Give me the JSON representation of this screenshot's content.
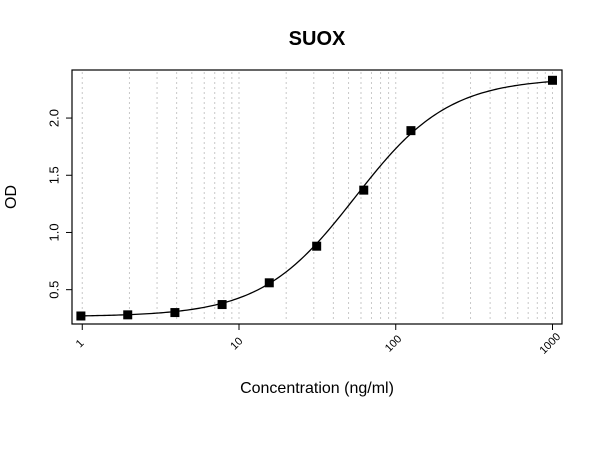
{
  "chart_data": {
    "type": "scatter",
    "title": "SUOX",
    "xlabel": "Concentration (ng/ml)",
    "ylabel": "OD",
    "x_scale": "log",
    "xlim": [
      0.86,
      1150
    ],
    "ylim": [
      0.2,
      2.42
    ],
    "x_ticks": [
      1,
      10,
      100,
      1000
    ],
    "x_tick_labels": [
      "1",
      "10",
      "100",
      "1000"
    ],
    "y_ticks": [
      0.5,
      1.0,
      1.5,
      2.0
    ],
    "y_tick_labels": [
      "0.5",
      "1.0",
      "1.5",
      "2.0"
    ],
    "grid": "vertical dotted at log-minor positions",
    "series": [
      {
        "marker": "square",
        "color": "#000000",
        "points": [
          {
            "x": 0.98,
            "y": 0.27
          },
          {
            "x": 1.95,
            "y": 0.28
          },
          {
            "x": 3.9,
            "y": 0.3
          },
          {
            "x": 7.8,
            "y": 0.37
          },
          {
            "x": 15.6,
            "y": 0.56
          },
          {
            "x": 31.3,
            "y": 0.88
          },
          {
            "x": 62.5,
            "y": 1.37
          },
          {
            "x": 125,
            "y": 1.89
          },
          {
            "x": 1000,
            "y": 2.33
          }
        ]
      }
    ],
    "fit_curve": {
      "type": "4PL",
      "color": "#000000",
      "bottom": 0.265,
      "top": 2.35,
      "ec50": 55,
      "hill": 1.45
    }
  }
}
